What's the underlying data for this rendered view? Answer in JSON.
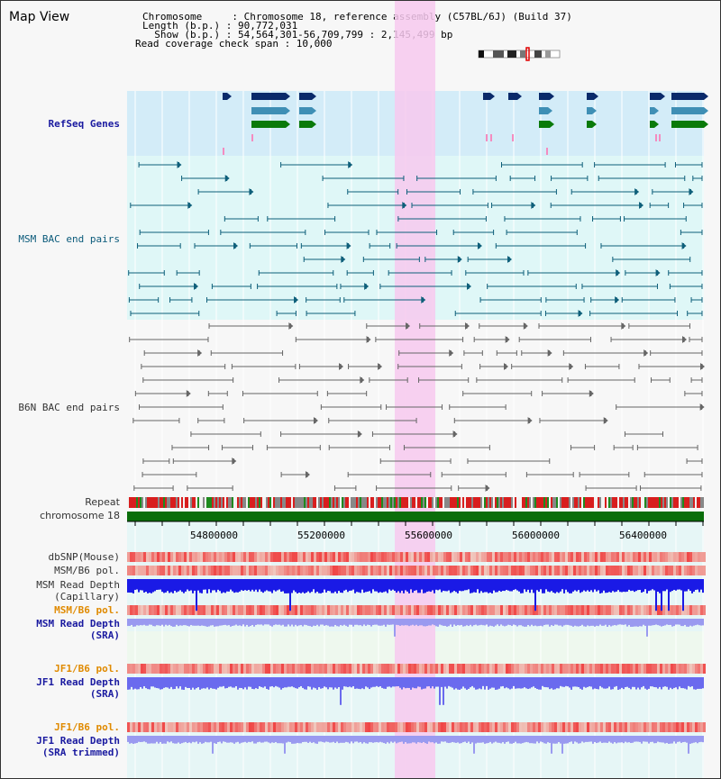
{
  "title": "Map View",
  "info": {
    "chromosome": "Chromosome     : Chromosome 18, reference assembly (C57BL/6J) (Build 37)",
    "length": "Length (b.p.) : 90,772,031",
    "show": "  Show (b.p.) : 54,564,301-56,709,799 : 2,145,499 bp",
    "coverage": "Read coverage check span : 10,000"
  },
  "tracks": {
    "refseq": "RefSeq Genes",
    "msm_bac": "MSM BAC end pairs",
    "b6n_bac": "B6N BAC end pairs",
    "repeat": "Repeat",
    "chromosome": "chromosome 18",
    "dbsnp": "dbSNP(Mouse)",
    "msm_b6_pol_1": "MSM/B6 pol.",
    "msm_depth_cap_1": "MSM Read Depth",
    "msm_depth_cap_2": "(Capillary)",
    "msm_b6_pol_2": "MSM/B6 pol.",
    "msm_depth_sra_1": "MSM Read Depth",
    "msm_depth_sra_2": "(SRA)",
    "jf1_b6_pol_1": "JF1/B6 pol.",
    "jf1_depth_sra_1": "JF1 Read Depth",
    "jf1_depth_sra_2": "(SRA)",
    "jf1_b6_pol_2": "JF1/B6 pol.",
    "jf1_depth_trim_1": "JF1 Read Depth",
    "jf1_depth_trim_2": "(SRA trimmed)"
  },
  "axis_ticks": [
    "54800000",
    "55200000",
    "55600000",
    "56000000",
    "56400000"
  ],
  "colors": {
    "highlight": "#f7c9ef",
    "refseq_bg": "#d3ecf8",
    "msm_bg": "#dff7f7",
    "chrom_bar": "#0a6e0a",
    "gene_dark": "#0a2a6a",
    "gene_mid": "#3f8fb5",
    "gene_green": "#0a7a0a",
    "bac_msm": "#0e5f7a",
    "bac_b6n": "#666666"
  }
}
